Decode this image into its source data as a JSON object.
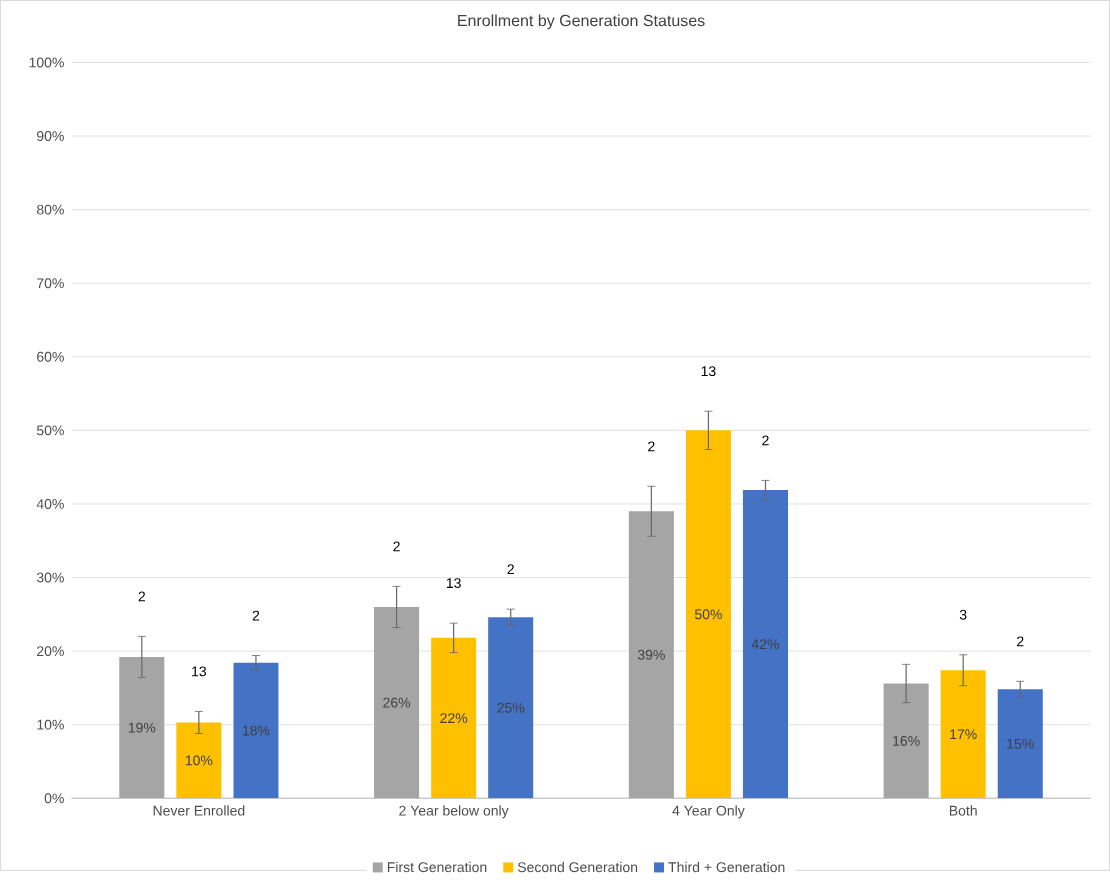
{
  "chart_data": {
    "type": "bar",
    "title": "Enrollment by Generation Statuses",
    "categories": [
      "Never Enrolled",
      "2 Year below only",
      "4 Year Only",
      "Both"
    ],
    "series": [
      {
        "name": "First Generation",
        "color": "#a5a5a5",
        "values": [
          19.2,
          26.0,
          39.0,
          15.6
        ],
        "errors": [
          2.8,
          2.8,
          3.4,
          2.6
        ],
        "value_labels": [
          "19%",
          "26%",
          "39%",
          "16%"
        ]
      },
      {
        "name": "Second Generation",
        "color": "#ffc000",
        "values": [
          10.3,
          21.8,
          50.0,
          17.4
        ],
        "errors": [
          1.5,
          2.0,
          2.6,
          2.1
        ],
        "value_labels": [
          "10%",
          "22%",
          "50%",
          "17%"
        ]
      },
      {
        "name": "Third + Generation",
        "color": "#4472c4",
        "values": [
          18.4,
          24.6,
          41.9,
          14.8
        ],
        "errors": [
          1.0,
          1.1,
          1.3,
          1.1
        ],
        "value_labels": [
          "18%",
          "25%",
          "42%",
          "15%"
        ]
      }
    ],
    "ylim": [
      0,
      100
    ],
    "yticks": [
      {
        "value": 0,
        "label": "0%"
      },
      {
        "value": 10,
        "label": "10%"
      },
      {
        "value": 20,
        "label": "20%"
      },
      {
        "value": 30,
        "label": "30%"
      },
      {
        "value": 40,
        "label": "40%"
      },
      {
        "value": 50,
        "label": "50%"
      },
      {
        "value": 60,
        "label": "60%"
      },
      {
        "value": 70,
        "label": "70%"
      },
      {
        "value": 80,
        "label": "80%"
      },
      {
        "value": 90,
        "label": "90%"
      },
      {
        "value": 100,
        "label": "100%"
      }
    ],
    "annotations": [
      "2",
      "13",
      "2",
      "2",
      "13",
      "2",
      "2",
      "13",
      "2",
      "3",
      "2"
    ],
    "grid": "y",
    "legend": "bottom"
  }
}
